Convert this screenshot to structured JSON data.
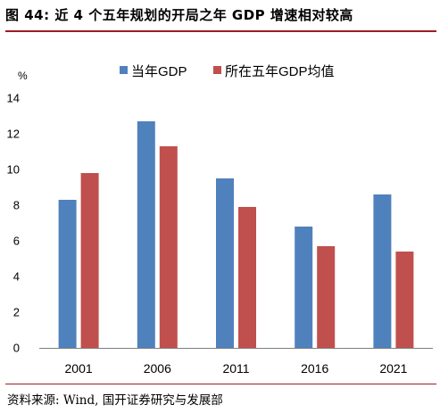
{
  "header": {
    "title": "图 44:  近 4 个五年规划的开局之年 GDP 增速相对较高"
  },
  "footer": {
    "source": "资料来源:  Wind,  国开证券研究与发展部"
  },
  "chart_data": {
    "type": "bar",
    "title": "",
    "xlabel": "",
    "ylabel": "%",
    "categories": [
      "2001",
      "2006",
      "2011",
      "2016",
      "2021"
    ],
    "series": [
      {
        "name": "当年GDP",
        "color": "#4f81bd",
        "values": [
          8.3,
          12.7,
          9.5,
          6.8,
          8.6
        ]
      },
      {
        "name": "所在五年GDP均值",
        "color": "#c0504d",
        "values": [
          9.8,
          11.3,
          7.9,
          5.7,
          5.4
        ]
      }
    ],
    "ylim": [
      0,
      14
    ],
    "yticks": [
      0,
      2,
      4,
      6,
      8,
      10,
      12,
      14
    ],
    "grid": false,
    "legend_position": "top-center"
  }
}
